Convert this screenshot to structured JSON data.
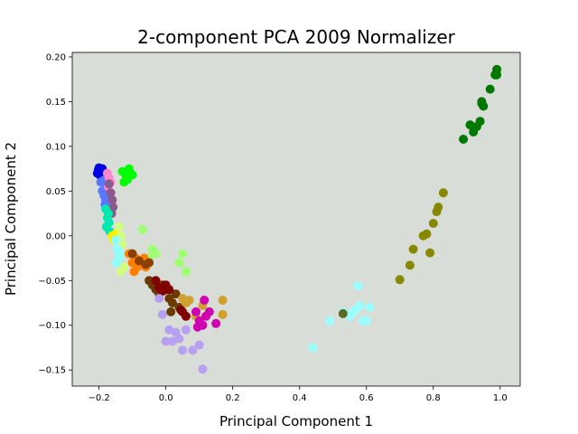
{
  "chart_data": {
    "type": "scatter",
    "title": "2-component PCA 2009 Normalizer",
    "xlabel": "Principal Component 1",
    "ylabel": "Principal Component 2",
    "xlim": [
      -0.28,
      1.06
    ],
    "ylim": [
      -0.168,
      0.205
    ],
    "xticks": [
      -0.2,
      0.0,
      0.2,
      0.4,
      0.6,
      0.8,
      1.0
    ],
    "xtick_labels": [
      "−0.2",
      "0.0",
      "0.2",
      "0.4",
      "0.6",
      "0.8",
      "1.0"
    ],
    "yticks": [
      -0.15,
      -0.1,
      -0.05,
      0.0,
      0.05,
      0.1,
      0.15,
      0.2
    ],
    "ytick_labels": [
      "−0.15",
      "−0.10",
      "−0.05",
      "0.00",
      "0.05",
      "0.10",
      "0.15",
      "0.20"
    ],
    "grid": false,
    "plot_background": "#d9ddd8",
    "series": [
      {
        "color": "#0000e0",
        "points": [
          [
            -0.2,
            0.076
          ],
          [
            -0.195,
            0.072
          ],
          [
            -0.19,
            0.075
          ],
          [
            -0.205,
            0.07
          ],
          [
            -0.198,
            0.068
          ],
          [
            -0.192,
            0.065
          ],
          [
            -0.202,
            0.074
          ],
          [
            -0.188,
            0.07
          ]
        ]
      },
      {
        "color": "#5a78ff",
        "points": [
          [
            -0.195,
            0.06
          ],
          [
            -0.19,
            0.05
          ],
          [
            -0.185,
            0.045
          ],
          [
            -0.18,
            0.04
          ],
          [
            -0.178,
            0.055
          ],
          [
            -0.186,
            0.062
          ],
          [
            -0.182,
            0.035
          ],
          [
            -0.176,
            0.048
          ]
        ]
      },
      {
        "color": "#ff88cc",
        "points": [
          [
            -0.175,
            0.07
          ],
          [
            -0.17,
            0.065
          ],
          [
            -0.165,
            0.06
          ],
          [
            -0.172,
            0.055
          ]
        ]
      },
      {
        "color": "#00ff00",
        "points": [
          [
            -0.13,
            0.072
          ],
          [
            -0.12,
            0.068
          ],
          [
            -0.115,
            0.063
          ],
          [
            -0.11,
            0.075
          ],
          [
            -0.105,
            0.07
          ],
          [
            -0.125,
            0.06
          ],
          [
            -0.1,
            0.068
          ]
        ]
      },
      {
        "color": "#8a5a8a",
        "points": [
          [
            -0.17,
            0.058
          ],
          [
            -0.165,
            0.048
          ],
          [
            -0.16,
            0.04
          ],
          [
            -0.158,
            0.032
          ],
          [
            -0.162,
            0.025
          ]
        ]
      },
      {
        "color": "#00e8b0",
        "points": [
          [
            -0.18,
            0.03
          ],
          [
            -0.175,
            0.02
          ],
          [
            -0.17,
            0.015
          ],
          [
            -0.178,
            0.01
          ],
          [
            -0.168,
            0.005
          ],
          [
            -0.172,
            0.025
          ]
        ]
      },
      {
        "color": "#ffee00",
        "points": [
          [
            -0.16,
            0.0
          ],
          [
            -0.155,
            -0.005
          ],
          [
            -0.15,
            0.002
          ]
        ]
      },
      {
        "color": "#d0ff80",
        "points": [
          [
            -0.14,
            0.01
          ],
          [
            -0.135,
            0.0
          ],
          [
            -0.13,
            -0.01
          ],
          [
            -0.14,
            -0.02
          ],
          [
            -0.135,
            -0.04
          ],
          [
            -0.125,
            -0.035
          ]
        ]
      },
      {
        "color": "#90ffff",
        "points": [
          [
            -0.15,
            -0.005
          ],
          [
            -0.145,
            -0.015
          ],
          [
            -0.14,
            -0.025
          ],
          [
            -0.148,
            -0.03
          ],
          [
            -0.138,
            -0.02
          ]
        ]
      },
      {
        "color": "#a0ff70",
        "points": [
          [
            -0.07,
            0.007
          ],
          [
            -0.04,
            -0.015
          ],
          [
            -0.03,
            -0.02
          ],
          [
            0.05,
            -0.02
          ],
          [
            0.06,
            -0.04
          ],
          [
            0.04,
            -0.03
          ],
          [
            -0.05,
            -0.025
          ]
        ]
      },
      {
        "color": "#ff8000",
        "points": [
          [
            -0.11,
            -0.02
          ],
          [
            -0.1,
            -0.03
          ],
          [
            -0.095,
            -0.04
          ],
          [
            -0.09,
            -0.025
          ],
          [
            -0.085,
            -0.035
          ],
          [
            -0.075,
            -0.03
          ],
          [
            -0.065,
            -0.025
          ],
          [
            -0.06,
            -0.035
          ]
        ]
      },
      {
        "color": "#8b4000",
        "points": [
          [
            -0.1,
            -0.02
          ],
          [
            -0.08,
            -0.028
          ],
          [
            -0.06,
            -0.032
          ],
          [
            -0.05,
            -0.03
          ]
        ]
      },
      {
        "color": "#6b3a00",
        "points": [
          [
            -0.05,
            -0.05
          ],
          [
            -0.04,
            -0.055
          ],
          [
            -0.03,
            -0.06
          ],
          [
            -0.02,
            -0.065
          ],
          [
            0.0,
            -0.06
          ],
          [
            0.01,
            -0.07
          ],
          [
            0.02,
            -0.075
          ],
          [
            0.03,
            -0.065
          ],
          [
            -0.01,
            -0.055
          ],
          [
            0.015,
            -0.085
          ],
          [
            0.04,
            -0.08
          ]
        ]
      },
      {
        "color": "#800000",
        "points": [
          [
            -0.03,
            -0.05
          ],
          [
            -0.02,
            -0.058
          ],
          [
            -0.01,
            -0.062
          ],
          [
            0.0,
            -0.055
          ],
          [
            0.01,
            -0.06
          ],
          [
            0.05,
            -0.085
          ],
          [
            0.06,
            -0.09
          ],
          [
            0.045,
            -0.083
          ]
        ]
      },
      {
        "color": "#d0a030",
        "points": [
          [
            0.05,
            -0.07
          ],
          [
            0.07,
            -0.072
          ],
          [
            0.09,
            -0.09
          ],
          [
            0.11,
            -0.078
          ],
          [
            0.17,
            -0.072
          ],
          [
            0.17,
            -0.088
          ],
          [
            0.06,
            -0.075
          ]
        ]
      },
      {
        "color": "#b8a0f0",
        "points": [
          [
            -0.02,
            -0.07
          ],
          [
            -0.01,
            -0.088
          ],
          [
            0.01,
            -0.105
          ],
          [
            0.03,
            -0.108
          ],
          [
            0.02,
            -0.118
          ],
          [
            0.04,
            -0.115
          ],
          [
            0.06,
            -0.105
          ],
          [
            0.05,
            -0.128
          ],
          [
            0.08,
            -0.128
          ],
          [
            0.1,
            -0.122
          ],
          [
            0.11,
            -0.149
          ],
          [
            0.0,
            -0.118
          ]
        ]
      },
      {
        "color": "#d000b0",
        "points": [
          [
            0.09,
            -0.085
          ],
          [
            0.1,
            -0.095
          ],
          [
            0.11,
            -0.1
          ],
          [
            0.12,
            -0.09
          ],
          [
            0.13,
            -0.085
          ],
          [
            0.15,
            -0.098
          ],
          [
            0.115,
            -0.072
          ],
          [
            0.095,
            -0.102
          ]
        ]
      },
      {
        "color": "#9cffff",
        "points": [
          [
            0.44,
            -0.125
          ],
          [
            0.49,
            -0.095
          ],
          [
            0.53,
            -0.085
          ],
          [
            0.55,
            -0.09
          ],
          [
            0.56,
            -0.085
          ],
          [
            0.57,
            -0.082
          ],
          [
            0.58,
            -0.078
          ],
          [
            0.59,
            -0.095
          ],
          [
            0.6,
            -0.095
          ],
          [
            0.61,
            -0.08
          ],
          [
            0.575,
            -0.056
          ]
        ]
      },
      {
        "color": "#5a6a20",
        "points": [
          [
            0.53,
            -0.087
          ]
        ]
      },
      {
        "color": "#888800",
        "points": [
          [
            0.7,
            -0.049
          ],
          [
            0.73,
            -0.033
          ],
          [
            0.74,
            -0.015
          ],
          [
            0.77,
            0.0
          ],
          [
            0.78,
            0.002
          ],
          [
            0.79,
            -0.019
          ],
          [
            0.8,
            0.014
          ],
          [
            0.81,
            0.027
          ],
          [
            0.815,
            0.032
          ],
          [
            0.83,
            0.048
          ]
        ]
      },
      {
        "color": "#007800",
        "points": [
          [
            0.89,
            0.108
          ],
          [
            0.91,
            0.124
          ],
          [
            0.92,
            0.116
          ],
          [
            0.93,
            0.122
          ],
          [
            0.94,
            0.128
          ],
          [
            0.945,
            0.148
          ],
          [
            0.95,
            0.145
          ],
          [
            0.97,
            0.164
          ],
          [
            0.985,
            0.18
          ],
          [
            0.99,
            0.186
          ],
          [
            0.99,
            0.18
          ],
          [
            0.945,
            0.15
          ]
        ]
      }
    ]
  }
}
